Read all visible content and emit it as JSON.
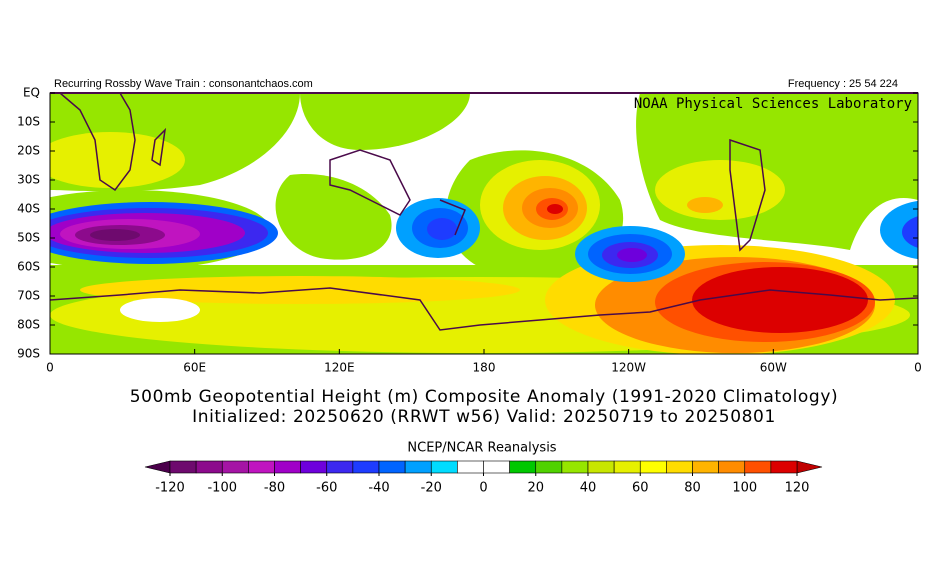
{
  "header": {
    "left": "Recurring Rossby Wave Train : consonantchaos.com",
    "right": "Frequency : 25 54 224"
  },
  "map": {
    "credit": "NOAA Physical Sciences Laboratory",
    "lat_labels": [
      "EQ",
      "10S",
      "20S",
      "30S",
      "40S",
      "50S",
      "60S",
      "70S",
      "80S",
      "90S"
    ],
    "lon_labels": [
      "0",
      "60E",
      "120E",
      "180",
      "120W",
      "60W",
      "0"
    ]
  },
  "title": {
    "line1": "500mb Geopotential Height (m) Composite Anomaly (1991-2020 Climatology)",
    "line2": "Initialized: 20250620 (RRWT w56) Valid: 20250719 to 20250801"
  },
  "colorbar": {
    "source": "NCEP/NCAR Reanalysis",
    "lim": [
      -120,
      120
    ],
    "ticks": [
      -120,
      -100,
      -80,
      -60,
      -40,
      -20,
      0,
      20,
      40,
      60,
      80,
      100,
      120
    ],
    "under_color": "#4b004b",
    "over_color": "#c00000",
    "colors": [
      "#6e0a6e",
      "#8c0a8c",
      "#a514a5",
      "#c014c0",
      "#a000c8",
      "#6e00dc",
      "#3c28f0",
      "#1e3cff",
      "#0064ff",
      "#00a0ff",
      "#00dcff",
      "#ffffff",
      "#ffffff",
      "#00c800",
      "#50d200",
      "#96e600",
      "#c8e600",
      "#e6f000",
      "#ffff00",
      "#ffdc00",
      "#ffb400",
      "#ff8c00",
      "#ff5000",
      "#dc0000"
    ]
  }
}
